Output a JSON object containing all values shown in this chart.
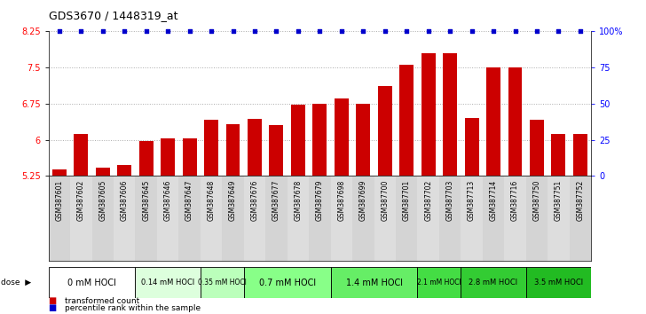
{
  "title": "GDS3670 / 1448319_at",
  "samples": [
    "GSM387601",
    "GSM387602",
    "GSM387605",
    "GSM387606",
    "GSM387645",
    "GSM387646",
    "GSM387647",
    "GSM387648",
    "GSM387649",
    "GSM387676",
    "GSM387677",
    "GSM387678",
    "GSM387679",
    "GSM387698",
    "GSM387699",
    "GSM387700",
    "GSM387701",
    "GSM387702",
    "GSM387703",
    "GSM387713",
    "GSM387714",
    "GSM387716",
    "GSM387750",
    "GSM387751",
    "GSM387752"
  ],
  "bar_values": [
    5.38,
    6.12,
    5.42,
    5.47,
    5.97,
    6.03,
    6.03,
    6.42,
    6.32,
    6.43,
    6.31,
    6.73,
    6.75,
    6.85,
    6.75,
    7.12,
    7.55,
    7.8,
    7.8,
    6.45,
    7.5,
    7.5,
    6.42,
    6.12,
    6.12
  ],
  "percentile_values": [
    100,
    100,
    100,
    100,
    100,
    100,
    100,
    100,
    100,
    100,
    100,
    100,
    100,
    100,
    100,
    100,
    100,
    100,
    100,
    100,
    100,
    100,
    100,
    100,
    100
  ],
  "dose_groups": [
    {
      "label": "0 mM HOCl",
      "start": 0,
      "end": 4,
      "color": "#ffffff"
    },
    {
      "label": "0.14 mM HOCl",
      "start": 4,
      "end": 7,
      "color": "#ddffdd"
    },
    {
      "label": "0.35 mM HOCl",
      "start": 7,
      "end": 9,
      "color": "#bbffbb"
    },
    {
      "label": "0.7 mM HOCl",
      "start": 9,
      "end": 13,
      "color": "#88ff88"
    },
    {
      "label": "1.4 mM HOCl",
      "start": 13,
      "end": 17,
      "color": "#66ee66"
    },
    {
      "label": "2.1 mM HOCl",
      "start": 17,
      "end": 19,
      "color": "#44dd44"
    },
    {
      "label": "2.8 mM HOCl",
      "start": 19,
      "end": 22,
      "color": "#33cc33"
    },
    {
      "label": "3.5 mM HOCl",
      "start": 22,
      "end": 25,
      "color": "#22bb22"
    }
  ],
  "ymin": 5.25,
  "ymax": 8.25,
  "yticks": [
    5.25,
    6.0,
    6.75,
    7.5,
    8.25
  ],
  "ytick_labels": [
    "5.25",
    "6",
    "6.75",
    "7.5",
    "8.25"
  ],
  "right_yticks": [
    0,
    25,
    50,
    75,
    100
  ],
  "right_ytick_labels": [
    "0",
    "25",
    "50",
    "75",
    "100%"
  ],
  "bar_color": "#cc0000",
  "percentile_color": "#0000cc",
  "grid_color": "#aaaaaa",
  "title_fontsize": 9,
  "label_fontsize": 5.5,
  "tick_fontsize": 7
}
